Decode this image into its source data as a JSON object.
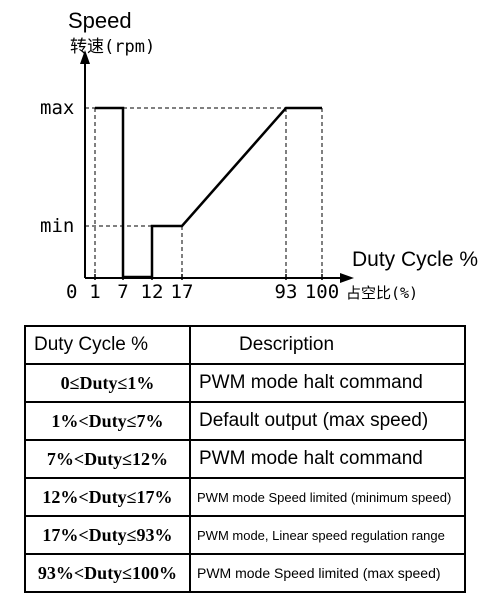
{
  "chart_data": {
    "type": "line",
    "title": "Speed",
    "ylabel": "转速(rpm)",
    "xlabel": "Duty Cycle %",
    "xlabel_cn": "占空比(%)",
    "x_ticks": [
      1,
      7,
      12,
      17,
      93,
      100
    ],
    "x_origin_label": "0",
    "y_tick_labels": [
      "max",
      "min"
    ],
    "series": [
      {
        "points": [
          {
            "x": 1,
            "y": "max"
          },
          {
            "x": 7,
            "y": "max"
          },
          {
            "x": 7,
            "y": "0"
          },
          {
            "x": 12,
            "y": "0"
          },
          {
            "x": 12,
            "y": "min"
          },
          {
            "x": 17,
            "y": "min"
          },
          {
            "x": 93,
            "y": "max"
          },
          {
            "x": 100,
            "y": "max"
          }
        ]
      }
    ],
    "grid": false,
    "guide_lines": "dashed"
  },
  "table": {
    "headers": [
      "Duty Cycle %",
      "Description"
    ],
    "rows": [
      {
        "range": "0≤Duty≤1%",
        "description": "PWM mode  halt command"
      },
      {
        "range": "1%<Duty≤7%",
        "description": "Default output (max speed)"
      },
      {
        "range": "7%<Duty≤12%",
        "description": "PWM mode  halt command"
      },
      {
        "range": "12%<Duty≤17%",
        "description": "PWM mode Speed limited  (minimum speed)"
      },
      {
        "range": "17%<Duty≤93%",
        "description": "PWM mode, Linear speed regulation range"
      },
      {
        "range": "93%<Duty≤100%",
        "description": "PWM mode Speed limited (max speed)"
      }
    ]
  }
}
